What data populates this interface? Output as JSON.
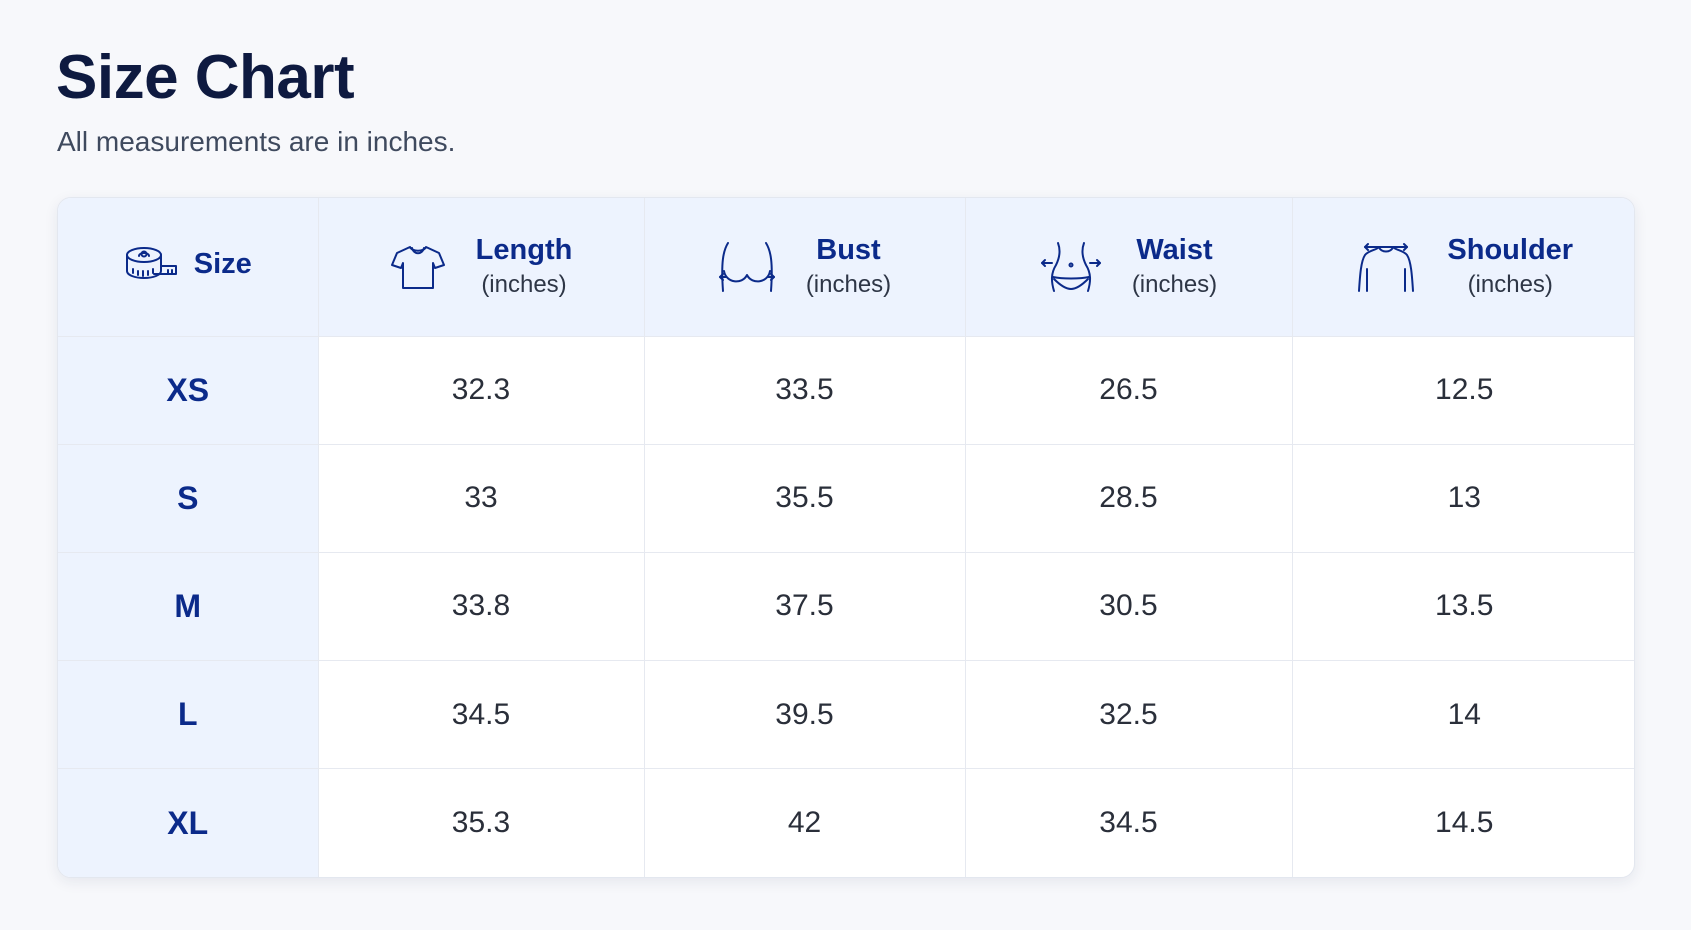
{
  "header": {
    "title": "Size Chart",
    "subtitle": "All measurements are in inches."
  },
  "table": {
    "columns": [
      {
        "name": "Size",
        "unit": "",
        "icon": "measuring-tape-icon"
      },
      {
        "name": "Length",
        "unit": "(inches)",
        "icon": "tshirt-icon"
      },
      {
        "name": "Bust",
        "unit": "(inches)",
        "icon": "bust-icon"
      },
      {
        "name": "Waist",
        "unit": "(inches)",
        "icon": "waist-icon"
      },
      {
        "name": "Shoulder",
        "unit": "(inches)",
        "icon": "shoulder-icon"
      }
    ],
    "rows": [
      {
        "size": "XS",
        "length": "32.3",
        "bust": "33.5",
        "waist": "26.5",
        "shoulder": "12.5"
      },
      {
        "size": "S",
        "length": "33",
        "bust": "35.5",
        "waist": "28.5",
        "shoulder": "13"
      },
      {
        "size": "M",
        "length": "33.8",
        "bust": "37.5",
        "waist": "30.5",
        "shoulder": "13.5"
      },
      {
        "size": "L",
        "length": "34.5",
        "bust": "39.5",
        "waist": "32.5",
        "shoulder": "14"
      },
      {
        "size": "XL",
        "length": "35.3",
        "bust": "42",
        "waist": "34.5",
        "shoulder": "14.5"
      }
    ]
  },
  "colors": {
    "heading": "#0e1a40",
    "accent": "#0b2a8a",
    "header_background": "#edf3fe"
  }
}
